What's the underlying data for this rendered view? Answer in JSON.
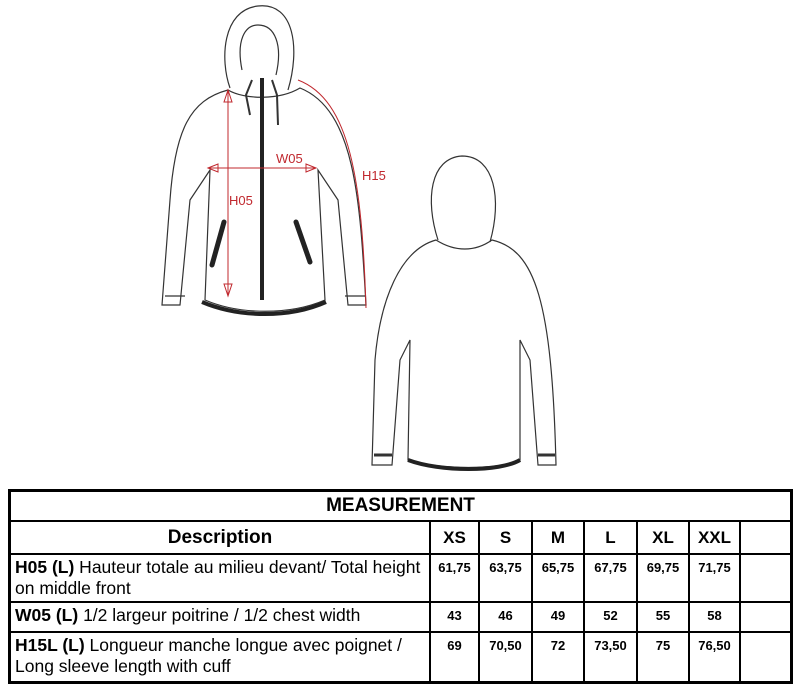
{
  "labels": {
    "w05": "W05",
    "h05": "H05",
    "h15": "H15"
  },
  "colors": {
    "dimension": "#c0282e",
    "outline": "#333333"
  },
  "table": {
    "title": "MEASUREMENT",
    "header": {
      "description": "Description",
      "sizes": [
        "XS",
        "S",
        "M",
        "L",
        "XL",
        "XXL",
        ""
      ]
    },
    "rows": [
      {
        "code": "H05 (L)",
        "text": " Hauteur totale au milieu devant/ Total height on middle front",
        "values": [
          "61,75",
          "63,75",
          "65,75",
          "67,75",
          "69,75",
          "71,75",
          ""
        ]
      },
      {
        "code": "W05 (L)",
        "text": " 1/2 largeur poitrine / 1/2 chest width",
        "values": [
          "43",
          "46",
          "49",
          "52",
          "55",
          "58",
          ""
        ]
      },
      {
        "code": "H15L (L)",
        "text": " Longueur manche longue avec poignet / Long sleeve length with cuff",
        "values": [
          "69",
          "70,50",
          "72",
          "73,50",
          "75",
          "76,50",
          ""
        ]
      }
    ]
  }
}
